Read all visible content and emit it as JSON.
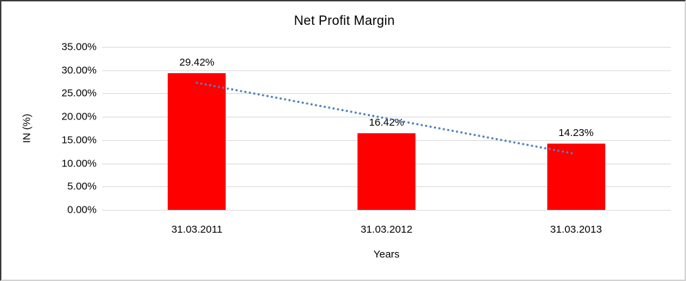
{
  "chart_data": {
    "type": "bar",
    "title": "Net Profit Margin",
    "xlabel": "Years",
    "ylabel": "IN (%)",
    "categories": [
      "31.03.2011",
      "31.03.2012",
      "31.03.2013"
    ],
    "values": [
      29.42,
      16.42,
      14.23
    ],
    "value_labels": [
      "29.42%",
      "16.42%",
      "14.23%"
    ],
    "ytick_values": [
      0,
      5,
      10,
      15,
      20,
      25,
      30,
      35
    ],
    "ytick_labels": [
      "0.00%",
      "5.00%",
      "10.00%",
      "15.00%",
      "20.00%",
      "25.00%",
      "30.00%",
      "35.00%"
    ],
    "ylim": [
      0,
      35
    ],
    "grid": true,
    "legend": "none",
    "bar_color": "#ff0000",
    "gridline_color": "#d9d9d9",
    "text_color": "#000000",
    "trendline": {
      "type": "linear",
      "style": "dotted",
      "color": "#4f81bd",
      "start_value": 27.3,
      "end_value": 12.0
    }
  }
}
